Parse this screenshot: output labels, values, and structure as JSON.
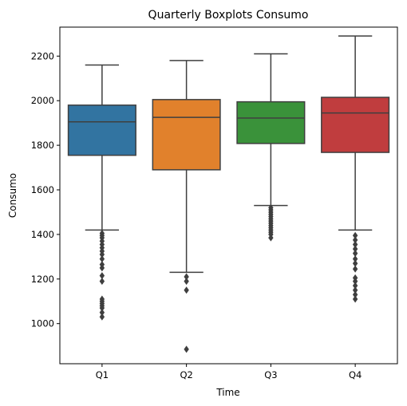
{
  "chart_data": {
    "type": "box",
    "title": "Quarterly Boxplots Consumo",
    "xlabel": "Time",
    "ylabel": "Consumo",
    "categories": [
      "Q1",
      "Q2",
      "Q3",
      "Q4"
    ],
    "ylim": [
      820,
      2330
    ],
    "yticks": [
      1000,
      1200,
      1400,
      1600,
      1800,
      2000,
      2200
    ],
    "ytick_labels": [
      "1000",
      "1200",
      "1400",
      "1600",
      "1800",
      "2000",
      "2200"
    ],
    "grid": false,
    "legend": "none",
    "boxes": [
      {
        "category": "Q1",
        "color": "#3274a1",
        "whisker_low": 1420,
        "q1": 1755,
        "median": 1905,
        "q3": 1980,
        "whisker_high": 2160,
        "outliers": [
          1405,
          1395,
          1385,
          1370,
          1355,
          1340,
          1325,
          1310,
          1290,
          1265,
          1250,
          1215,
          1190,
          1110,
          1100,
          1090,
          1080,
          1070,
          1050,
          1030
        ]
      },
      {
        "category": "Q2",
        "color": "#e1812c",
        "whisker_low": 1230,
        "q1": 1690,
        "median": 1925,
        "q3": 2005,
        "whisker_high": 2180,
        "outliers": [
          1210,
          1190,
          1150,
          885
        ]
      },
      {
        "category": "Q3",
        "color": "#3a923a",
        "whisker_low": 1530,
        "q1": 1808,
        "median": 1922,
        "q3": 1995,
        "whisker_high": 2210,
        "outliers": [
          1520,
          1510,
          1500,
          1490,
          1480,
          1470,
          1460,
          1450,
          1440,
          1430,
          1420,
          1410,
          1400,
          1385
        ]
      },
      {
        "category": "Q4",
        "color": "#c03d3e",
        "whisker_low": 1420,
        "q1": 1768,
        "median": 1945,
        "q3": 2015,
        "whisker_high": 2290,
        "outliers": [
          1395,
          1375,
          1355,
          1335,
          1315,
          1290,
          1270,
          1245,
          1205,
          1190,
          1170,
          1150,
          1130,
          1110
        ]
      }
    ]
  }
}
